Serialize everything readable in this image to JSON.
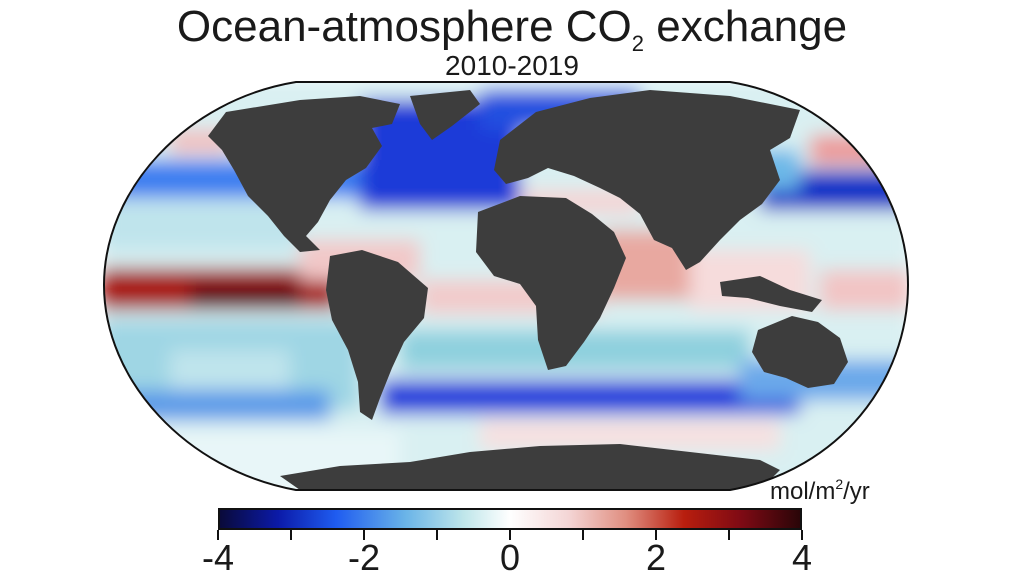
{
  "map": {
    "title_main": "Ocean-atmosphere CO",
    "title_sub": "2",
    "title_rest": " exchange",
    "subtitle": "2010-2019",
    "units_main": "mol/m",
    "units_sup": "2",
    "units_rest": "/yr",
    "land_color": "#3d3d3d",
    "ocean_neutral": "#ffffff",
    "uptake_color": "#1f3ee0",
    "outgassing_color": "#b81e0e"
  },
  "colorbar": {
    "min": -4,
    "max": 4,
    "ticks": [
      -4,
      -3,
      -2,
      -1,
      0,
      1,
      2,
      3,
      4
    ],
    "labels": [
      "-4",
      "-2",
      "0",
      "2",
      "4"
    ]
  }
}
